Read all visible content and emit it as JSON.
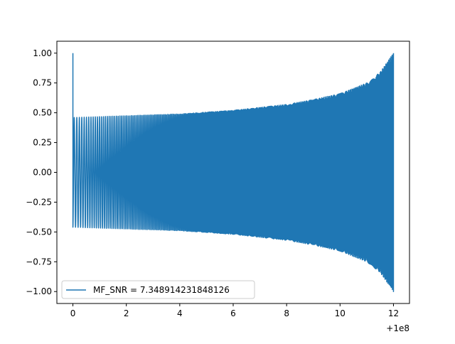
{
  "chart_data": {
    "type": "line",
    "title": "",
    "xlabel": "",
    "ylabel": "",
    "x_offset_text": "+1e8",
    "xlim": [
      -0.6,
      12.6
    ],
    "ylim": [
      -1.1,
      1.1
    ],
    "x_ticks": [
      0,
      2,
      4,
      6,
      8,
      10,
      12
    ],
    "x_tick_labels": [
      "0",
      "2",
      "4",
      "6",
      "8",
      "10",
      "12"
    ],
    "y_ticks": [
      1.0,
      0.75,
      0.5,
      0.25,
      0.0,
      -0.25,
      -0.5,
      -0.75,
      -1.0
    ],
    "y_tick_labels": [
      "1.00",
      "0.75",
      "0.50",
      "0.25",
      "0.00",
      "−0.25",
      "−0.50",
      "−0.75",
      "−1.00"
    ],
    "grid": false,
    "legend_position": "lower-left",
    "series": [
      {
        "name": "MF_SNR = 7.348914231848126",
        "color": "#1f77b4",
        "x_range": [
          0,
          12
        ],
        "initial_spike": 1.0,
        "envelope": [
          {
            "x": 0.0,
            "amp": 0.46
          },
          {
            "x": 2.0,
            "amp": 0.475
          },
          {
            "x": 4.0,
            "amp": 0.49
          },
          {
            "x": 6.0,
            "amp": 0.52
          },
          {
            "x": 8.0,
            "amp": 0.57
          },
          {
            "x": 9.0,
            "amp": 0.61
          },
          {
            "x": 10.0,
            "amp": 0.66
          },
          {
            "x": 11.0,
            "amp": 0.75
          },
          {
            "x": 11.5,
            "amp": 0.84
          },
          {
            "x": 12.0,
            "amp": 1.0
          }
        ],
        "frequency_start": 10,
        "frequency_end": 48
      }
    ]
  }
}
